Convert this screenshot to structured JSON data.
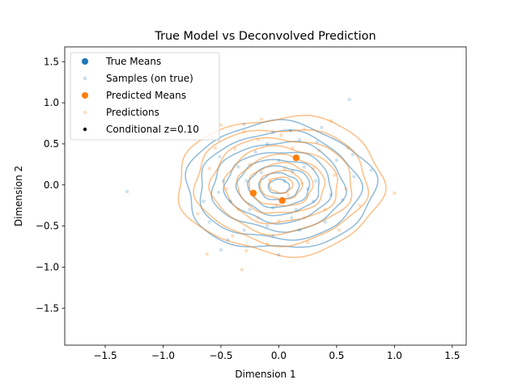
{
  "chart_data": {
    "type": "scatter",
    "title": "True Model vs Deconvolved Prediction",
    "xlabel": "Dimension 1",
    "ylabel": "Dimension 2",
    "xlim": [
      -1.85,
      1.62
    ],
    "ylim": [
      -1.95,
      1.68
    ],
    "xticks": [
      -1.5,
      -1.0,
      -0.5,
      0.0,
      0.5,
      1.0,
      1.5
    ],
    "yticks": [
      -1.5,
      -1.0,
      -0.5,
      0.0,
      0.5,
      1.0,
      1.5
    ],
    "xtick_labels": [
      "−1.5",
      "−1.0",
      "−0.5",
      "0.0",
      "0.5",
      "1.0",
      "1.5"
    ],
    "ytick_labels": [
      "−1.5",
      "−1.0",
      "−0.5",
      "0.0",
      "0.5",
      "1.0",
      "1.5"
    ],
    "grid": false,
    "legend_position": "top-left",
    "colors": {
      "true": "#1f77b4",
      "pred": "#ff7f0e",
      "true_contour": "#1f77b4",
      "pred_contour": "#ff7f0e",
      "conditional": "#000000"
    },
    "legend": [
      {
        "key": "true_means",
        "label": "True Means"
      },
      {
        "key": "samples",
        "label": "Samples (on true)"
      },
      {
        "key": "pred_means",
        "label": "Predicted Means"
      },
      {
        "key": "predictions",
        "label": "Predictions"
      },
      {
        "key": "conditional",
        "label": "Conditional z=0.10"
      }
    ],
    "series": [
      {
        "name": "Predicted Means",
        "points": [
          [
            0.15,
            0.33
          ],
          [
            -0.22,
            -0.1
          ],
          [
            0.03,
            -0.19
          ]
        ]
      },
      {
        "name": "Samples (on true)",
        "points": [
          [
            -1.31,
            -0.08
          ],
          [
            0.61,
            1.04
          ],
          [
            0.8,
            0.18
          ],
          [
            0.64,
            0.37
          ],
          [
            -0.5,
            -0.79
          ],
          [
            -0.44,
            -0.67
          ],
          [
            -0.51,
            0.34
          ],
          [
            -0.52,
            -0.09
          ],
          [
            -0.3,
            0.74
          ],
          [
            -0.05,
            0.64
          ],
          [
            0.1,
            0.66
          ],
          [
            0.18,
            0.55
          ],
          [
            0.33,
            0.52
          ],
          [
            0.12,
            0.16
          ],
          [
            0.32,
            0.05
          ],
          [
            0.45,
            -0.12
          ],
          [
            0.3,
            -0.2
          ],
          [
            0.11,
            -0.4
          ],
          [
            -0.1,
            -0.5
          ],
          [
            -0.3,
            -0.55
          ],
          [
            -0.6,
            -0.45
          ],
          [
            -0.48,
            0.05
          ],
          [
            -0.35,
            0.22
          ],
          [
            -0.2,
            0.4
          ],
          [
            0.0,
            0.3
          ],
          [
            0.22,
            0.22
          ],
          [
            0.5,
            0.3
          ],
          [
            0.55,
            -0.18
          ],
          [
            0.4,
            -0.45
          ],
          [
            0.18,
            -0.55
          ],
          [
            -0.05,
            -0.62
          ],
          [
            -0.25,
            -0.3
          ],
          [
            -0.42,
            -0.2
          ],
          [
            -0.15,
            0.15
          ],
          [
            0.05,
            0.05
          ],
          [
            0.25,
            -0.05
          ],
          [
            0.15,
            -0.3
          ],
          [
            -0.05,
            -0.28
          ],
          [
            -0.28,
            0.05
          ],
          [
            -0.1,
            0.5
          ],
          [
            0.37,
            0.7
          ],
          [
            -0.52,
            0.55
          ],
          [
            0.65,
            0.1
          ],
          [
            -0.65,
            -0.2
          ],
          [
            0.0,
            -0.85
          ]
        ]
      },
      {
        "name": "Predictions",
        "points": [
          [
            1.0,
            -0.1
          ],
          [
            -0.32,
            -1.03
          ],
          [
            -0.62,
            -0.84
          ],
          [
            -0.5,
            0.73
          ],
          [
            0.22,
            0.68
          ],
          [
            0.02,
            0.61
          ],
          [
            -0.18,
            0.55
          ],
          [
            -0.38,
            0.44
          ],
          [
            0.35,
            0.42
          ],
          [
            0.48,
            0.12
          ],
          [
            0.4,
            -0.3
          ],
          [
            0.22,
            -0.4
          ],
          [
            0.0,
            -0.44
          ],
          [
            -0.18,
            -0.4
          ],
          [
            -0.35,
            -0.3
          ],
          [
            -0.45,
            -0.05
          ],
          [
            -0.25,
            0.25
          ],
          [
            0.05,
            0.2
          ],
          [
            0.2,
            0.02
          ],
          [
            0.08,
            -0.12
          ],
          [
            -0.08,
            0.06
          ],
          [
            0.6,
            0.45
          ],
          [
            0.7,
            -0.25
          ],
          [
            0.52,
            -0.55
          ],
          [
            0.25,
            -0.7
          ],
          [
            -0.1,
            -0.72
          ],
          [
            -0.4,
            -0.62
          ],
          [
            -0.7,
            -0.35
          ],
          [
            -0.6,
            0.2
          ],
          [
            -0.3,
            0.65
          ],
          [
            0.45,
            0.78
          ],
          [
            -0.15,
            0.8
          ],
          [
            0.12,
            0.45
          ],
          [
            -0.02,
            -0.25
          ],
          [
            0.3,
            0.2
          ],
          [
            -0.55,
            0.45
          ],
          [
            0.58,
            -0.05
          ],
          [
            -0.28,
            -0.8
          ]
        ]
      }
    ],
    "contours": {
      "true": {
        "center": [
          0.0,
          -0.02
        ],
        "radii": [
          0.8,
          0.68,
          0.56,
          0.45,
          0.35,
          0.26,
          0.17,
          0.09
        ]
      },
      "pred": {
        "center": [
          0.02,
          0.0
        ],
        "radii": [
          0.87,
          0.73,
          0.6,
          0.48,
          0.37,
          0.27,
          0.18,
          0.1
        ]
      }
    }
  }
}
